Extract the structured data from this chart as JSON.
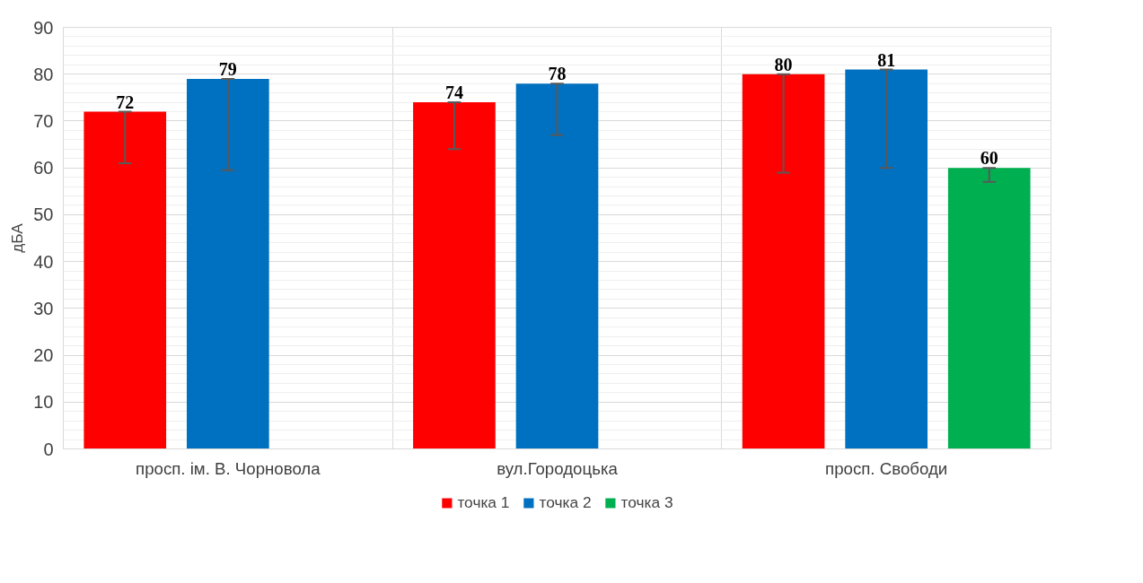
{
  "chart_data": {
    "type": "bar",
    "ylabel": "дБА",
    "categories": [
      "просп. ім. В. Чорновола",
      "вул.Городоцька",
      "просп. Свободи"
    ],
    "ylim": [
      0,
      90
    ],
    "yticks": [
      0,
      10,
      20,
      30,
      40,
      50,
      60,
      70,
      80,
      90
    ],
    "grid": true,
    "legend": "bottom",
    "data_labels": true,
    "series": [
      {
        "name": "точка 1",
        "color": "#ff0000",
        "values": [
          72,
          74,
          80
        ],
        "errors": [
          [
            61,
            72
          ],
          [
            64,
            74
          ],
          [
            59,
            80
          ]
        ]
      },
      {
        "name": "точка 2",
        "color": "#0070c0",
        "values": [
          79,
          78,
          81
        ],
        "errors": [
          [
            59.5,
            79
          ],
          [
            67,
            78
          ],
          [
            60,
            81
          ]
        ]
      },
      {
        "name": "точка 3",
        "color": "#00b050",
        "values": [
          null,
          null,
          60
        ],
        "errors": [
          null,
          null,
          [
            57,
            60
          ]
        ]
      }
    ]
  }
}
